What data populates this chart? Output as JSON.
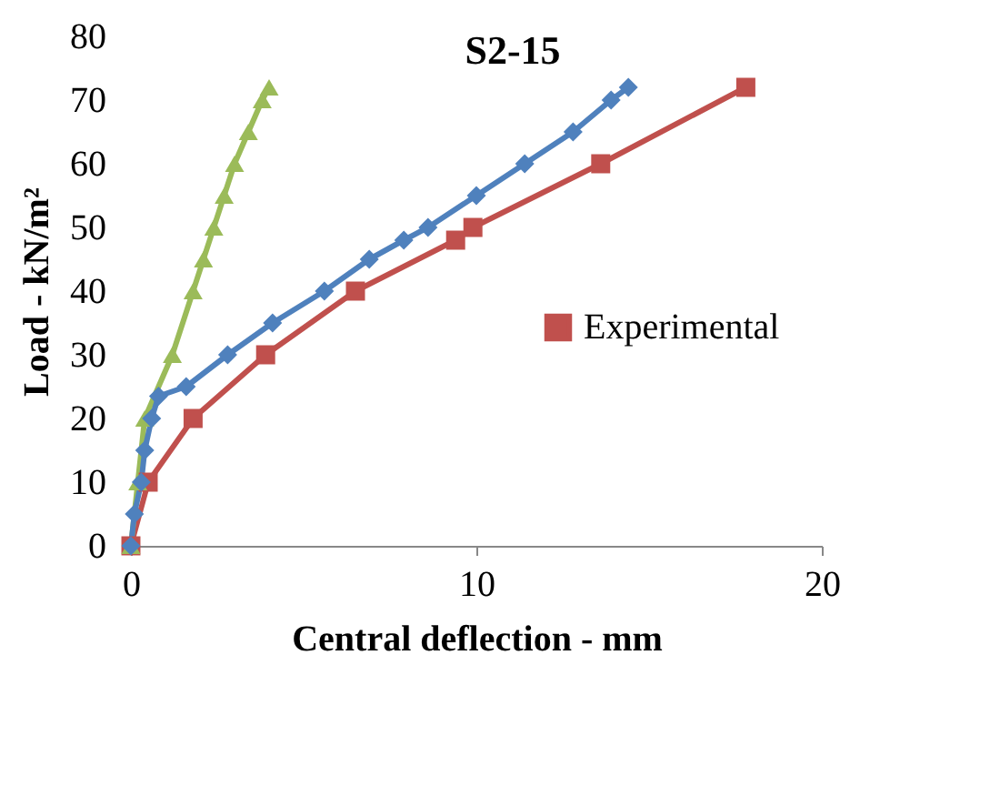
{
  "chart_data": {
    "type": "line",
    "title": "S2-15",
    "xlabel": "Central deflection - mm",
    "ylabel": "Load - kN/m²",
    "xlim": [
      0,
      20
    ],
    "xticks": [
      0,
      10,
      20
    ],
    "ylim": [
      0,
      80
    ],
    "yticks": [
      0,
      10,
      20,
      30,
      40,
      50,
      60,
      70,
      80
    ],
    "legend": "right",
    "grid": false,
    "series": [
      {
        "name": "Experimental",
        "color": "#c0504d",
        "marker": "square",
        "x": [
          0,
          0.5,
          1.8,
          3.9,
          6.5,
          9.4,
          9.9,
          13.6,
          17.8
        ],
        "values": [
          0,
          10,
          20,
          30,
          40,
          48,
          50,
          60,
          72
        ]
      },
      {
        "color": "#9bbb59",
        "marker": "triangle",
        "x": [
          0,
          0.2,
          0.4,
          1.2,
          1.8,
          2.1,
          2.4,
          2.7,
          3.0,
          3.4,
          3.8,
          4.0
        ],
        "values": [
          0,
          10,
          20,
          30,
          40,
          45,
          50,
          55,
          60,
          65,
          70,
          72
        ]
      },
      {
        "color": "#4f81bd",
        "marker": "diamond",
        "x": [
          0,
          0.1,
          0.3,
          0.4,
          0.6,
          0.8,
          1.6,
          2.8,
          4.1,
          5.6,
          6.9,
          7.9,
          8.6,
          10.0,
          11.4,
          12.8,
          13.9,
          14.4
        ],
        "values": [
          0,
          5,
          10,
          15,
          20,
          23.5,
          25,
          30,
          35,
          40,
          45,
          48,
          50,
          55,
          60,
          65,
          70,
          72
        ]
      }
    ]
  }
}
